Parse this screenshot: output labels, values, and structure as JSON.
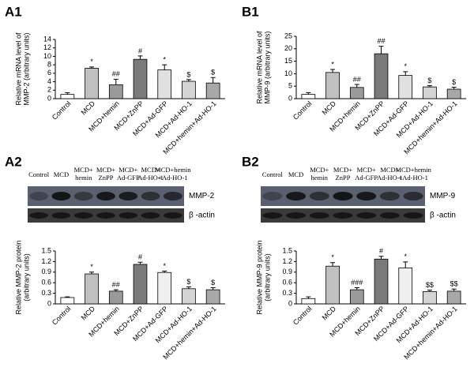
{
  "panel_labels": [
    "A1",
    "B1",
    "A2",
    "B2"
  ],
  "chart_data": [
    {
      "type": "bar",
      "ylabel": [
        "Relative mRNA level of",
        "MMP-2 (arbitrary units)"
      ],
      "categories": [
        "Control",
        "MCD",
        "MCD+hemin",
        "MCD+ZnPP",
        "MCD+Ad-GFP",
        "MCD+Ad-HO-1",
        "MCD+hemin+Ad-HO-1"
      ],
      "values": [
        1.0,
        7.2,
        3.3,
        9.3,
        6.8,
        4.1,
        3.7
      ],
      "errors": [
        0.4,
        0.3,
        1.3,
        0.8,
        1.2,
        0.4,
        1.3
      ],
      "annotations": [
        null,
        "*",
        "##",
        "#",
        "*",
        "$",
        "$"
      ],
      "colors": [
        "#ffffff",
        "#c0c0c0",
        "#9a9a9a",
        "#7a7a7a",
        "#e0e0e0",
        "#d4d4d4",
        "#a8a8a8"
      ],
      "ylim": [
        0,
        14
      ],
      "yticks": [
        0,
        2,
        4,
        6,
        8,
        10,
        12,
        14
      ]
    },
    {
      "type": "bar",
      "ylabel": [
        "Relative mRNA level of",
        "MMP-9 (arbitrary units)"
      ],
      "categories": [
        "Control",
        "MCD",
        "MCD+hemin",
        "MCD+ZnPP",
        "MCD+Ad-GFP",
        "MCD+Ad-HO-1",
        "MCD+hemin+Ad-HO-1"
      ],
      "values": [
        1.7,
        10.5,
        4.5,
        18,
        9.3,
        4.7,
        3.8
      ],
      "errors": [
        0.7,
        1.2,
        1.2,
        3,
        1.5,
        0.5,
        0.8
      ],
      "annotations": [
        null,
        "*",
        "##",
        "##",
        "*",
        "$",
        "$"
      ],
      "colors": [
        "#ffffff",
        "#c0c0c0",
        "#9a9a9a",
        "#7a7a7a",
        "#e0e0e0",
        "#d4d4d4",
        "#a8a8a8"
      ],
      "ylim": [
        0,
        25
      ],
      "yticks": [
        0,
        5,
        10,
        15,
        20,
        25
      ]
    },
    {
      "type": "bar",
      "ylabel": [
        "Relative MMP-2 protein",
        "(arbitrary units)"
      ],
      "categories": [
        "Control",
        "MCD",
        "MCD+hemin",
        "MCD+ZnPP",
        "MCD+Ad-GFP",
        "MCD+Ad-HO-1",
        "MCD+hemin+Ad-HO-1"
      ],
      "values": [
        0.18,
        0.85,
        0.36,
        1.12,
        0.89,
        0.43,
        0.4
      ],
      "errors": [
        0.02,
        0.05,
        0.04,
        0.06,
        0.04,
        0.05,
        0.06
      ],
      "annotations": [
        null,
        "*",
        "##",
        "#",
        "*",
        "$",
        "$"
      ],
      "colors": [
        "#ffffff",
        "#c0c0c0",
        "#9a9a9a",
        "#7a7a7a",
        "#f0f0f0",
        "#d4d4d4",
        "#a8a8a8"
      ],
      "ylim": [
        0,
        1.5
      ],
      "yticks": [
        0,
        0.3,
        0.6,
        0.9,
        1.2,
        1.5
      ]
    },
    {
      "type": "bar",
      "ylabel": [
        "Relative MMP-9 protein",
        "(arbitrary units)"
      ],
      "categories": [
        "Control",
        "MCD",
        "MCD+hemin",
        "MCD+ZnPP",
        "MCD+Ad-GFP",
        "MCD+Ad-HO-1",
        "MCD+hemin+Ad-HO-1"
      ],
      "values": [
        0.15,
        1.07,
        0.4,
        1.27,
        1.02,
        0.35,
        0.36
      ],
      "errors": [
        0.05,
        0.1,
        0.06,
        0.08,
        0.17,
        0.04,
        0.06
      ],
      "annotations": [
        null,
        "*",
        "###",
        "#",
        "*",
        "$$",
        "$$"
      ],
      "colors": [
        "#ffffff",
        "#c0c0c0",
        "#9a9a9a",
        "#7a7a7a",
        "#f0f0f0",
        "#d4d4d4",
        "#a8a8a8"
      ],
      "ylim": [
        0,
        1.5
      ],
      "yticks": [
        0,
        0.3,
        0.6,
        0.9,
        1.2,
        1.5
      ]
    }
  ],
  "blots": [
    {
      "lanes": [
        [
          "Control"
        ],
        [
          "MCD"
        ],
        [
          "MCD+",
          "hemin"
        ],
        [
          "MCD+",
          "ZnPP"
        ],
        [
          "MCD+",
          "Ad-GFP"
        ],
        [
          "MCD+",
          "Ad-HO-1"
        ],
        [
          "MCD+hemin",
          "+Ad-HO-1"
        ]
      ],
      "bands": [
        "MMP-2",
        "β -actin"
      ]
    },
    {
      "lanes": [
        [
          "Control"
        ],
        [
          "MCD"
        ],
        [
          "MCD+",
          "hemin"
        ],
        [
          "MCD+",
          "ZnPP"
        ],
        [
          "MCD+",
          "Ad-GFP"
        ],
        [
          "MCD+",
          "Ad-HO-1"
        ],
        [
          "MCD+hemin",
          "+Ad-HO-1"
        ]
      ],
      "bands": [
        "MMP-9",
        "β -actin"
      ]
    }
  ]
}
